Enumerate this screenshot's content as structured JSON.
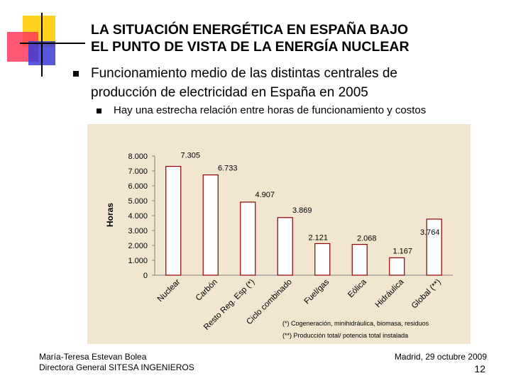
{
  "slide": {
    "title_line1": "LA SITUACIÓN ENERGÉTICA EN ESPAÑA BAJO",
    "title_line2": "EL PUNTO DE VISTA DE LA ENERGÍA NUCLEAR",
    "bullet1_line1": "Funcionamiento medio de las distintas centrales de",
    "bullet1_line2": "producción de electricidad en España en 2005",
    "bullet2": "Hay una estrecha relación entre horas de funcionamiento y costos"
  },
  "footer": {
    "author": "María-Teresa Estevan Bolea",
    "role": "Directora General SITESA INGENIEROS",
    "place_date": "Madrid, 29 octubre 2009",
    "page": "12"
  },
  "colors": {
    "deco_yellow": "#ffd21f",
    "deco_red": "#ff3a5c",
    "deco_blue": "#3b3bd6",
    "chart_bg": "#f2e6d1",
    "bar_fill": "#ffffff",
    "bar_stroke": "#8b0000"
  },
  "chart_data": {
    "type": "bar",
    "title": "",
    "ylabel": "Horas",
    "xlabel": "",
    "ylim": [
      0,
      8000
    ],
    "yticks": [
      0,
      1000,
      2000,
      3000,
      4000,
      5000,
      6000,
      7000,
      8000
    ],
    "ytick_labels": [
      "0",
      "1.000",
      "2.000",
      "3.000",
      "4.000",
      "5.000",
      "6.000",
      "7.000",
      "8.000"
    ],
    "grid": false,
    "categories": [
      "Nuclear",
      "Carbón",
      "Resto Reg. Esp (*)",
      "Ciclo combinado",
      "Fuel/gas",
      "Eólica",
      "Hidráulica",
      "Global (**)"
    ],
    "values": [
      7305,
      6733,
      4907,
      3869,
      2121,
      2068,
      1167,
      3764
    ],
    "data_labels": [
      "7.305",
      "6.733",
      "4.907",
      "3.869",
      "2.121",
      "2.068",
      "1.167",
      "3.764"
    ],
    "notes": [
      "(*) Cogeneración, minihidráulica, biomasa, residuos",
      "(**) Producción total/ potencia total instalada"
    ]
  }
}
